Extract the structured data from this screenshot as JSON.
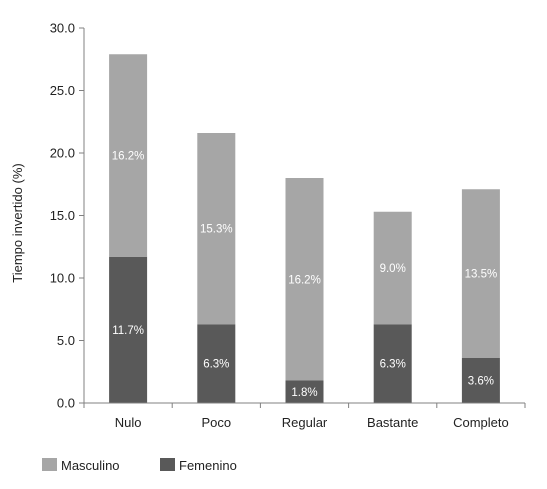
{
  "chart_data": {
    "type": "bar",
    "stacked": true,
    "categories": [
      "Nulo",
      "Poco",
      "Regular",
      "Bastante",
      "Completo"
    ],
    "series": [
      {
        "name": "Femenino",
        "values": [
          11.7,
          6.3,
          1.8,
          6.3,
          3.6
        ],
        "labels": [
          "11.7%",
          "6.3%",
          "1.8%",
          "6.3%",
          "3.6%"
        ],
        "color": "#595959"
      },
      {
        "name": "Masculino",
        "values": [
          16.2,
          15.3,
          16.2,
          9.0,
          13.5
        ],
        "labels": [
          "16.2%",
          "15.3%",
          "16.2%",
          "9.0%",
          "13.5%"
        ],
        "color": "#a6a6a6"
      }
    ],
    "title": "",
    "xlabel": "",
    "ylabel": "Tiempo invertido (%)",
    "ylim": [
      0,
      30
    ],
    "yticks": [
      "0.0",
      "5.0",
      "10.0",
      "15.0",
      "20.0",
      "25.0",
      "30.0"
    ],
    "grid": false,
    "legend": {
      "position": "bottom-left",
      "entries": [
        "Masculino",
        "Femenino"
      ]
    },
    "axis_color": "#808080"
  }
}
